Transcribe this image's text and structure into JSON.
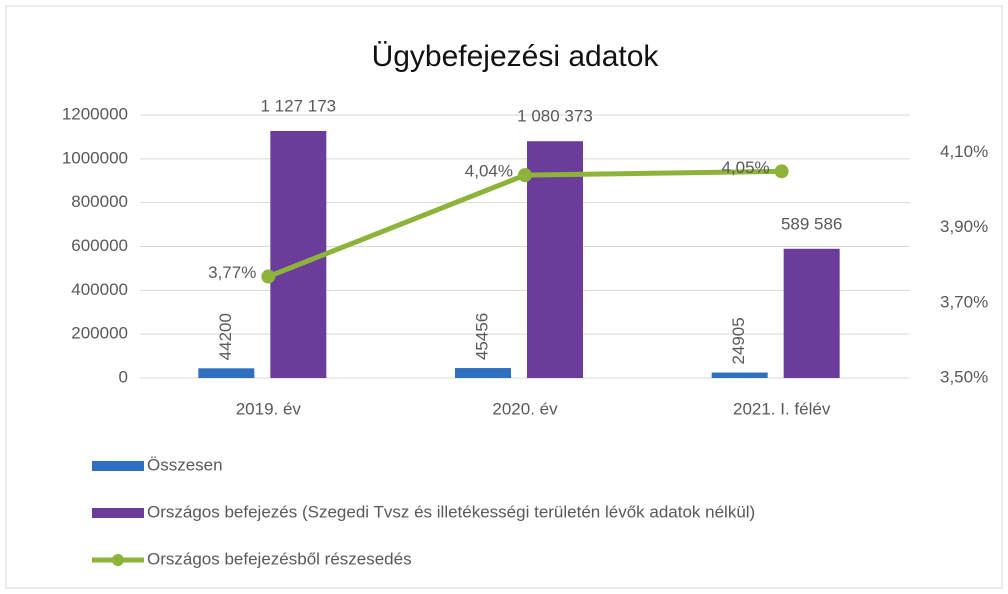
{
  "chart_data": {
    "type": "bar_line",
    "title": "Ügybefejezési adatok",
    "categories": [
      "2019. év",
      "2020. év",
      "2021. I. félév"
    ],
    "series": [
      {
        "name": "Összesen",
        "type": "bar",
        "color": "#2e6fc0",
        "values": [
          44200,
          45456,
          24905
        ]
      },
      {
        "name": "Országos befejezés (Szegedi Tvsz és illetékességi területén lévők adatok nélkül)",
        "type": "bar",
        "color": "#6a3d9a",
        "values": [
          1127173,
          1080373,
          589586
        ],
        "value_labels": [
          "1 127 173",
          "1 080 373",
          "589 586"
        ]
      },
      {
        "name": "Országos befejezésből részesedés",
        "type": "line",
        "axis": "y2",
        "color": "#8db33a",
        "values": [
          3.77,
          4.04,
          4.05
        ],
        "value_labels": [
          "3,77%",
          "4,04%",
          "4,05%"
        ]
      }
    ],
    "ylim": [
      0,
      1200000
    ],
    "yticks": [
      0,
      200000,
      400000,
      600000,
      800000,
      1000000,
      1200000
    ],
    "y2lim": [
      3.5,
      4.2
    ],
    "y2ticks": [
      {
        "value": 3.5,
        "label": "3,50%"
      },
      {
        "value": 3.7,
        "label": "3,70%"
      },
      {
        "value": 3.9,
        "label": "3,90%"
      },
      {
        "value": 4.1,
        "label": "4,10%"
      }
    ],
    "grid": true,
    "legend": "bottom"
  }
}
